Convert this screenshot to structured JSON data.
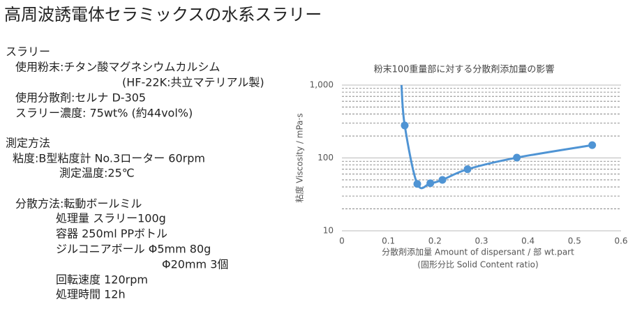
{
  "header": {
    "title": "高周波誘電体セラミックスの水系スラリー"
  },
  "lines": [
    "スラリー",
    "使用粉末:チタン酸マグネシウムカルシム",
    "(HF-22K:共立マテリアル製)",
    "使用分散剤:セルナ D-305",
    "スラリー濃度: 75wt% (約44vol%)",
    "測定方法",
    "粘度:B型粘度計  No.3ローター  60rpm",
    "測定温度:25℃",
    "分散方法:転動ボールミル",
    "処理量  スラリー100g",
    "容器  250ml PPボトル",
    "ジルコニアボール  Φ5mm  80g",
    "Φ20mm  3個",
    "回転速度  120rpm",
    "処理時間  12h"
  ],
  "chart_data": {
    "type": "line",
    "title": "粉末100重量部に対する分散剤添加量の影響",
    "ylabel": "粘度  Viscosity / mPa·s",
    "xlabel": [
      "分散剤添加量 Amount of dispersant / 部 wt.part",
      "(固形分比 Solid Content ratio)"
    ],
    "log_y": true,
    "xlim": [
      0,
      0.6
    ],
    "xticks": [
      0,
      0.1,
      0.2,
      0.3,
      0.4,
      0.5,
      0.6
    ],
    "ylim": [
      10,
      1000
    ],
    "yticks": [
      10,
      100,
      {
        "value": 1000,
        "label": "1,000"
      }
    ],
    "yminor": [
      20,
      30,
      40,
      50,
      60,
      70,
      80,
      90,
      200,
      300,
      400,
      500,
      600,
      700,
      800,
      900
    ],
    "grid": true,
    "series": [
      {
        "color": "#4f94d4",
        "markers": false,
        "x": [
          0.128,
          0.135,
          0.162,
          0.19,
          0.216,
          0.27,
          0.376,
          0.538
        ],
        "values": [
          1000,
          279,
          44,
          45,
          50,
          70,
          101,
          150
        ]
      },
      {
        "color": "#4f94d4",
        "markers": true,
        "x": [
          0.135,
          0.162,
          0.19,
          0.216,
          0.27,
          0.376,
          0.538
        ],
        "values": [
          279,
          44,
          45,
          50,
          70,
          101,
          150
        ]
      }
    ]
  }
}
